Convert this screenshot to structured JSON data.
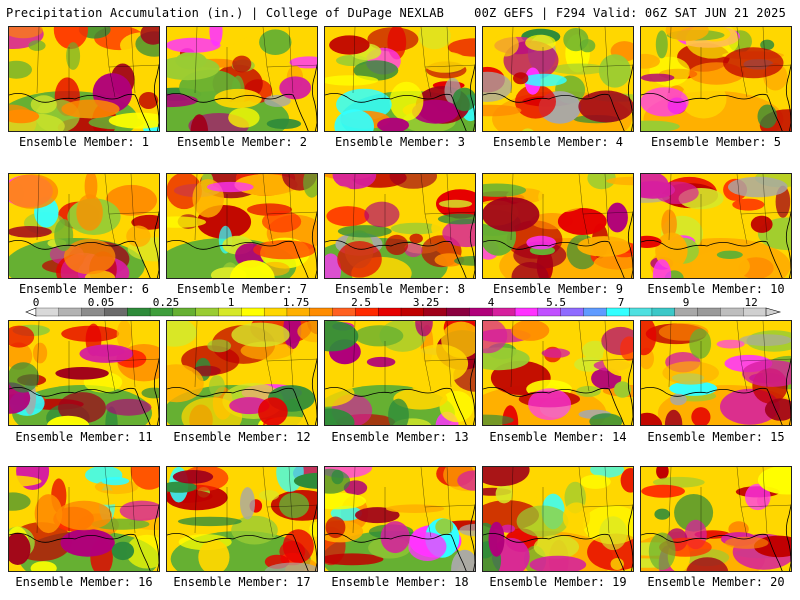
{
  "header": {
    "title": "Precipitation Accumulation (in.) | College of DuPage NEXLAB",
    "run_info": "00Z GEFS | F294 Valid: 06Z SAT JUN 21 2025"
  },
  "panels": [
    {
      "label": "Ensemble Member: 1"
    },
    {
      "label": "Ensemble Member: 2"
    },
    {
      "label": "Ensemble Member: 3"
    },
    {
      "label": "Ensemble Member: 4"
    },
    {
      "label": "Ensemble Member: 5"
    },
    {
      "label": "Ensemble Member: 6"
    },
    {
      "label": "Ensemble Member: 7"
    },
    {
      "label": "Ensemble Member: 8"
    },
    {
      "label": "Ensemble Member: 9"
    },
    {
      "label": "Ensemble Member: 10"
    },
    {
      "label": "Ensemble Member: 11"
    },
    {
      "label": "Ensemble Member: 12"
    },
    {
      "label": "Ensemble Member: 13"
    },
    {
      "label": "Ensemble Member: 14"
    },
    {
      "label": "Ensemble Member: 15"
    },
    {
      "label": "Ensemble Member: 16"
    },
    {
      "label": "Ensemble Member: 17"
    },
    {
      "label": "Ensemble Member: 18"
    },
    {
      "label": "Ensemble Member: 19"
    },
    {
      "label": "Ensemble Member: 20"
    }
  ],
  "colorbar": {
    "tick_labels": [
      "0",
      "0.05",
      "0.25",
      "1",
      "1.75",
      "2.5",
      "3.25",
      "4",
      "5.5",
      "7",
      "9",
      "12"
    ],
    "colors": [
      "#d9d9d9",
      "#b3b3b3",
      "#8c8c8c",
      "#6b6b6b",
      "#2e8b3a",
      "#3f9e3c",
      "#66b032",
      "#99cc33",
      "#d6e829",
      "#ffff00",
      "#ffd700",
      "#ffb000",
      "#ff8c00",
      "#ff6020",
      "#ff2a00",
      "#e60000",
      "#c00000",
      "#a0001a",
      "#8b0040",
      "#b0007a",
      "#d61f9e",
      "#ff33ff",
      "#c050ff",
      "#8f6bff",
      "#5f9bff",
      "#33ffff",
      "#4fe0e0",
      "#3cc8c8",
      "#a8a8a8",
      "#9a9a9a",
      "#bebebe",
      "#d0d0d0"
    ]
  }
}
